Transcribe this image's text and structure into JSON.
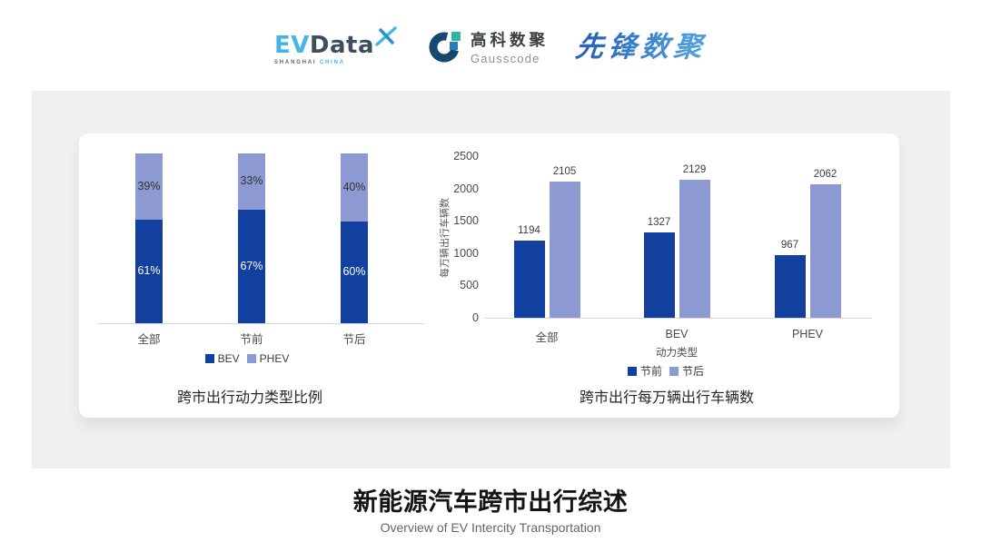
{
  "header": {
    "logos": {
      "evdata": {
        "ev": "EV",
        "data": "Data",
        "sub_left": "SHANGHAI",
        "sub_right": "CHINA"
      },
      "gausscode": {
        "cn": "高科数聚",
        "en": "Gausscode"
      },
      "xianfeng": {
        "text": "先锋数聚"
      }
    }
  },
  "colors": {
    "bev_dark_blue": "#11409e",
    "phev_light_blue": "#8d99d2",
    "axis_line": "#d9d9d9",
    "label_text": "#4a4a4a"
  },
  "chart_data": [
    {
      "type": "bar",
      "subtype": "stacked-percent",
      "title": "跨市出行动力类型比例",
      "categories": [
        "全部",
        "节前",
        "节后"
      ],
      "series": [
        {
          "name": "BEV",
          "values": [
            61,
            67,
            60
          ]
        },
        {
          "name": "PHEV",
          "values": [
            39,
            33,
            40
          ]
        }
      ],
      "value_labels": {
        "BEV": [
          "61%",
          "67%",
          "60%"
        ],
        "PHEV": [
          "39%",
          "33%",
          "40%"
        ]
      },
      "legend": [
        "BEV",
        "PHEV"
      ],
      "legend_position": "bottom",
      "grid": false,
      "ylim": [
        0,
        100
      ]
    },
    {
      "type": "bar",
      "subtype": "grouped",
      "title": "跨市出行每万辆出行车辆数",
      "categories": [
        "全部",
        "BEV",
        "PHEV"
      ],
      "xlabel": "动力类型",
      "ylabel": "每万辆出行车辆数",
      "series": [
        {
          "name": "节前",
          "values": [
            1194,
            1327,
            967
          ]
        },
        {
          "name": "节后",
          "values": [
            2105,
            2129,
            2062
          ]
        }
      ],
      "yticks": [
        0,
        500,
        1000,
        1500,
        2000,
        2500
      ],
      "ylim": [
        0,
        2500
      ],
      "legend": [
        "节前",
        "节后"
      ],
      "legend_position": "bottom",
      "grid": false
    }
  ],
  "footer": {
    "title": "新能源汽车跨市出行综述",
    "subtitle": "Overview of EV Intercity Transportation"
  }
}
